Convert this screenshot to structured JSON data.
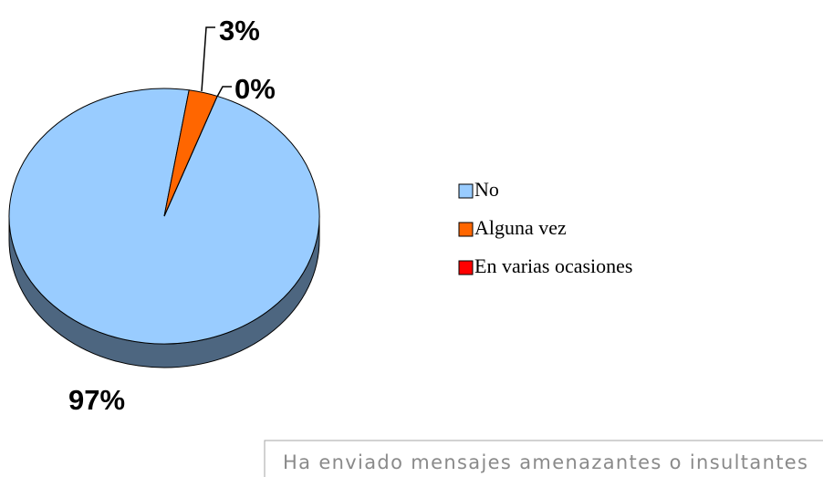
{
  "chart_data": {
    "type": "pie",
    "categories": [
      "No",
      "Alguna vez",
      "En varias ocasiones"
    ],
    "values": [
      97,
      3,
      0
    ],
    "value_labels": [
      "97%",
      "3%",
      "0%"
    ],
    "colors": [
      "#99ccff",
      "#ff6600",
      "#ff0000"
    ],
    "legend": "right",
    "caption": "Ha enviado mensajes amenazantes o insultantes"
  }
}
